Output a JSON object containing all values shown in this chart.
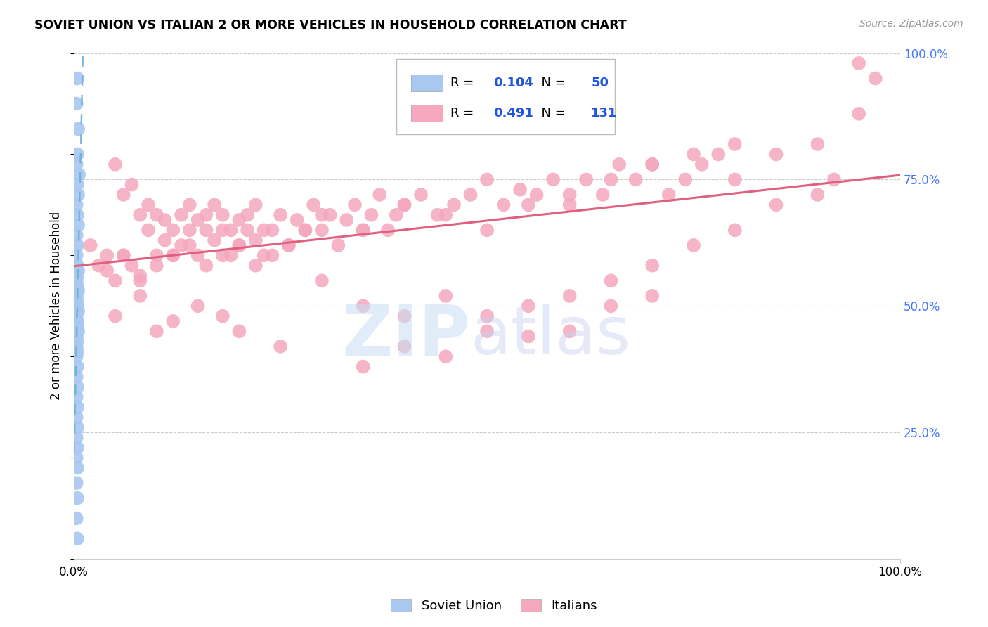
{
  "title": "SOVIET UNION VS ITALIAN 2 OR MORE VEHICLES IN HOUSEHOLD CORRELATION CHART",
  "source": "Source: ZipAtlas.com",
  "ylabel": "2 or more Vehicles in Household",
  "xmin": 0.0,
  "xmax": 1.0,
  "ymin": 0.0,
  "ymax": 1.0,
  "soviet_color": "#a8c8f0",
  "italian_color": "#f5a8be",
  "soviet_line_color": "#6baed6",
  "italian_line_color": "#e06080",
  "legend_R_soviet": "0.104",
  "legend_N_soviet": "50",
  "legend_R_italian": "0.491",
  "legend_N_italian": "131",
  "grid_color": "#cccccc",
  "right_tick_color": "#4477ff",
  "watermark_zip_color": "#c8dff5",
  "watermark_atlas_color": "#c8d0ee",
  "soviet_union_x": [
    0.004,
    0.003,
    0.005,
    0.004,
    0.003,
    0.006,
    0.004,
    0.005,
    0.003,
    0.004,
    0.005,
    0.003,
    0.004,
    0.003,
    0.004,
    0.005,
    0.004,
    0.003,
    0.004,
    0.005,
    0.003,
    0.004,
    0.003,
    0.004,
    0.005,
    0.003,
    0.004,
    0.003,
    0.004,
    0.005,
    0.003,
    0.004,
    0.003,
    0.004,
    0.003,
    0.004,
    0.003,
    0.004,
    0.003,
    0.004,
    0.003,
    0.004,
    0.003,
    0.004,
    0.003,
    0.004,
    0.003,
    0.004,
    0.003,
    0.004
  ],
  "soviet_union_y": [
    0.95,
    0.9,
    0.85,
    0.8,
    0.78,
    0.76,
    0.74,
    0.72,
    0.7,
    0.68,
    0.66,
    0.64,
    0.62,
    0.6,
    0.58,
    0.57,
    0.56,
    0.55,
    0.54,
    0.53,
    0.52,
    0.51,
    0.5,
    0.5,
    0.49,
    0.48,
    0.47,
    0.47,
    0.46,
    0.45,
    0.44,
    0.43,
    0.42,
    0.41,
    0.4,
    0.38,
    0.36,
    0.34,
    0.32,
    0.3,
    0.28,
    0.26,
    0.24,
    0.22,
    0.2,
    0.18,
    0.15,
    0.12,
    0.08,
    0.04
  ],
  "italian_x": [
    0.02,
    0.03,
    0.04,
    0.05,
    0.05,
    0.06,
    0.06,
    0.07,
    0.07,
    0.08,
    0.08,
    0.09,
    0.09,
    0.1,
    0.1,
    0.11,
    0.11,
    0.12,
    0.12,
    0.13,
    0.13,
    0.14,
    0.14,
    0.15,
    0.15,
    0.16,
    0.16,
    0.17,
    0.17,
    0.18,
    0.18,
    0.19,
    0.19,
    0.2,
    0.2,
    0.21,
    0.21,
    0.22,
    0.22,
    0.23,
    0.23,
    0.24,
    0.25,
    0.26,
    0.27,
    0.28,
    0.29,
    0.3,
    0.31,
    0.32,
    0.33,
    0.34,
    0.35,
    0.36,
    0.37,
    0.38,
    0.39,
    0.4,
    0.42,
    0.44,
    0.46,
    0.48,
    0.5,
    0.52,
    0.54,
    0.56,
    0.58,
    0.6,
    0.62,
    0.64,
    0.66,
    0.68,
    0.7,
    0.72,
    0.74,
    0.76,
    0.78,
    0.8,
    0.85,
    0.9,
    0.95,
    0.97,
    0.04,
    0.06,
    0.08,
    0.1,
    0.12,
    0.14,
    0.16,
    0.18,
    0.2,
    0.22,
    0.24,
    0.26,
    0.28,
    0.3,
    0.35,
    0.4,
    0.45,
    0.5,
    0.55,
    0.6,
    0.65,
    0.7,
    0.75,
    0.8,
    0.05,
    0.08,
    0.1,
    0.12,
    0.15,
    0.18,
    0.2,
    0.25,
    0.3,
    0.35,
    0.4,
    0.45,
    0.5,
    0.55,
    0.6,
    0.65,
    0.7,
    0.75,
    0.8,
    0.85,
    0.9,
    0.92,
    0.95,
    0.35,
    0.4,
    0.45,
    0.5,
    0.55,
    0.6,
    0.65,
    0.7
  ],
  "italian_y": [
    0.62,
    0.58,
    0.6,
    0.78,
    0.55,
    0.72,
    0.6,
    0.74,
    0.58,
    0.68,
    0.56,
    0.65,
    0.7,
    0.6,
    0.68,
    0.63,
    0.67,
    0.65,
    0.6,
    0.68,
    0.62,
    0.7,
    0.65,
    0.67,
    0.6,
    0.68,
    0.65,
    0.63,
    0.7,
    0.65,
    0.68,
    0.6,
    0.65,
    0.67,
    0.62,
    0.68,
    0.65,
    0.63,
    0.7,
    0.65,
    0.6,
    0.65,
    0.68,
    0.62,
    0.67,
    0.65,
    0.7,
    0.65,
    0.68,
    0.62,
    0.67,
    0.7,
    0.65,
    0.68,
    0.72,
    0.65,
    0.68,
    0.7,
    0.72,
    0.68,
    0.7,
    0.72,
    0.75,
    0.7,
    0.73,
    0.72,
    0.75,
    0.7,
    0.75,
    0.72,
    0.78,
    0.75,
    0.78,
    0.72,
    0.75,
    0.78,
    0.8,
    0.75,
    0.8,
    0.82,
    0.88,
    0.95,
    0.57,
    0.6,
    0.55,
    0.58,
    0.6,
    0.62,
    0.58,
    0.6,
    0.62,
    0.58,
    0.6,
    0.62,
    0.65,
    0.68,
    0.65,
    0.7,
    0.68,
    0.65,
    0.7,
    0.72,
    0.75,
    0.78,
    0.8,
    0.82,
    0.48,
    0.52,
    0.45,
    0.47,
    0.5,
    0.48,
    0.45,
    0.42,
    0.55,
    0.5,
    0.48,
    0.52,
    0.48,
    0.5,
    0.52,
    0.55,
    0.58,
    0.62,
    0.65,
    0.7,
    0.72,
    0.75,
    0.98,
    0.38,
    0.42,
    0.4,
    0.45,
    0.44,
    0.45,
    0.5,
    0.52
  ]
}
